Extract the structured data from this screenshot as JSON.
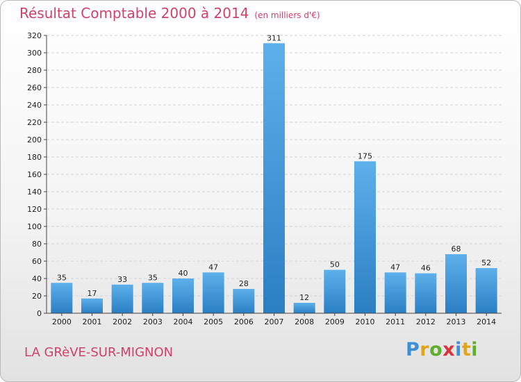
{
  "chart_data": {
    "type": "bar",
    "title": "Résultat Comptable 2000 à 2014",
    "subtitle": "(en milliers d'€)",
    "categories": [
      "2000",
      "2001",
      "2002",
      "2003",
      "2004",
      "2005",
      "2006",
      "2007",
      "2008",
      "2009",
      "2010",
      "2011",
      "2012",
      "2013",
      "2014"
    ],
    "values": [
      35,
      17,
      33,
      35,
      40,
      47,
      28,
      311,
      12,
      50,
      175,
      47,
      46,
      68,
      52
    ],
    "ylim": [
      0,
      320
    ],
    "yticks": [
      0,
      20,
      40,
      60,
      80,
      100,
      120,
      140,
      160,
      180,
      200,
      220,
      240,
      260,
      280,
      300,
      320
    ],
    "grid": true,
    "xlabel": "",
    "ylabel": "",
    "bar_color": "#3a95d8"
  },
  "footer": {
    "commune": "LA GRèVE-SUR-MIGNON",
    "brand_letters": [
      {
        "ch": "P",
        "color": "#3d8fd6"
      },
      {
        "ch": "r",
        "color": "#e0a51a"
      },
      {
        "ch": "o",
        "color": "#5fae2e"
      },
      {
        "ch": "x",
        "color": "#d8343c"
      },
      {
        "ch": "i",
        "color": "#3d8fd6"
      },
      {
        "ch": "t",
        "color": "#e0a51a"
      },
      {
        "ch": "i",
        "color": "#5fae2e"
      }
    ]
  }
}
